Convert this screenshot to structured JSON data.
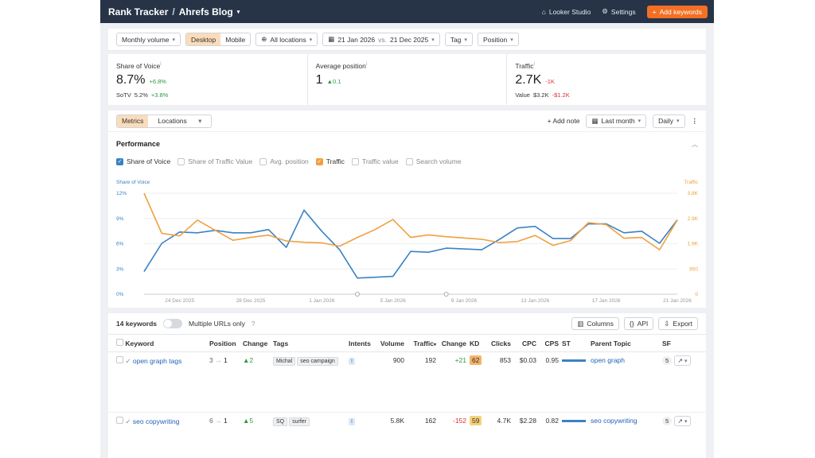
{
  "topbar": {
    "title": "Rank Tracker",
    "separator": "/",
    "project": "Ahrefs Blog",
    "looker": "Looker Studio",
    "settings": "Settings",
    "add_keywords": "Add keywords"
  },
  "filters": {
    "volume": "Monthly volume",
    "desktop": "Desktop",
    "mobile": "Mobile",
    "locations": "All locations",
    "date_from": "21 Jan 2026",
    "vs": "vs.",
    "date_to": "21 Dec 2025",
    "tag": "Tag",
    "position": "Position"
  },
  "stats": {
    "sov": {
      "label": "Share of Voice",
      "value": "8.7%",
      "change": "+6.8%",
      "sub_label": "SoTV",
      "sub_value": "5.2%",
      "sub_change": "+3.8%"
    },
    "avg": {
      "label": "Average position",
      "value": "1",
      "change": "0.1"
    },
    "traffic": {
      "label": "Traffic",
      "value": "2.7K",
      "change": "-1K",
      "sub_label": "Value",
      "sub_value": "$3.2K",
      "sub_change": "-$1.2K"
    }
  },
  "chart_toolbar": {
    "metrics": "Metrics",
    "locations": "Locations",
    "add_note": "Add note",
    "period": "Last month",
    "interval": "Daily"
  },
  "performance": {
    "title": "Performance",
    "legend": [
      "Share of Voice",
      "Share of Traffic Value",
      "Avg. position",
      "Traffic",
      "Traffic value",
      "Search volume"
    ]
  },
  "chart_data": {
    "type": "line",
    "left_axis_title": "Share of Voice",
    "right_axis_title": "Traffic",
    "left_ticks": [
      "0%",
      "3%",
      "6%",
      "9%",
      "12%"
    ],
    "right_ticks": [
      "0",
      "950",
      "1.9K",
      "2.9K",
      "3.8K"
    ],
    "x_ticks": [
      "24 Dec 2025",
      "28 Dec 2025",
      "1 Jan 2026",
      "5 Jan 2026",
      "9 Jan 2026",
      "13 Jan 2026",
      "17 Jan 2026",
      "21 Jan 2026"
    ],
    "ylim_left": [
      0,
      12.5
    ],
    "ylim_right": [
      0,
      3950
    ],
    "series": [
      {
        "name": "Share of Voice",
        "color": "#3b82c4",
        "values": [
          2.8,
          6.3,
          7.7,
          7.6,
          7.9,
          7.6,
          7.6,
          8.0,
          5.8,
          10.4,
          7.8,
          5.5,
          2.0,
          2.1,
          2.2,
          5.3,
          5.2,
          5.7,
          5.6,
          5.5,
          6.8,
          8.2,
          8.4,
          6.9,
          6.9,
          8.7,
          8.7,
          7.6,
          7.8,
          6.3,
          9.2
        ]
      },
      {
        "name": "Traffic",
        "color": "#f0a040",
        "values": [
          3950,
          2380,
          2280,
          2900,
          2500,
          2110,
          2220,
          2310,
          2080,
          2030,
          2010,
          1880,
          2220,
          2530,
          2920,
          2220,
          2320,
          2250,
          2200,
          2150,
          2020,
          2060,
          2300,
          1910,
          2100,
          2800,
          2720,
          2190,
          2220,
          1740,
          2900
        ]
      }
    ]
  },
  "table_toolbar": {
    "count": "14 keywords",
    "multiple_urls": "Multiple URLs only",
    "columns": "Columns",
    "api": "API",
    "export": "Export"
  },
  "table": {
    "headers": [
      "Keyword",
      "Position",
      "Change",
      "Tags",
      "Intents",
      "Volume",
      "Traffic",
      "Change",
      "KD",
      "Clicks",
      "CPC",
      "CPS",
      "ST",
      "Parent Topic",
      "SF"
    ],
    "rows": [
      {
        "keyword": "open graph tags",
        "pos_from": "3",
        "pos_to": "1",
        "change": "2",
        "tags": [
          "Michal",
          "seo campaign"
        ],
        "intent": "I",
        "volume": "900",
        "traffic": "192",
        "traffic_change": "+21",
        "kd": "62",
        "kd_color": "#f5b36b",
        "clicks": "853",
        "cpc": "$0.03",
        "cps": "0.95",
        "parent": "open graph",
        "sf": "5"
      },
      {
        "keyword": "seo copywriting",
        "pos_from": "6",
        "pos_to": "1",
        "change": "5",
        "tags": [
          "SQ",
          "surfer"
        ],
        "intent": "I",
        "volume": "5.8K",
        "traffic": "162",
        "traffic_change": "-152",
        "kd": "59",
        "kd_color": "#f7d27a",
        "clicks": "4.7K",
        "cpc": "$2.28",
        "cps": "0.82",
        "parent": "seo copywriting",
        "sf": "5"
      }
    ]
  }
}
